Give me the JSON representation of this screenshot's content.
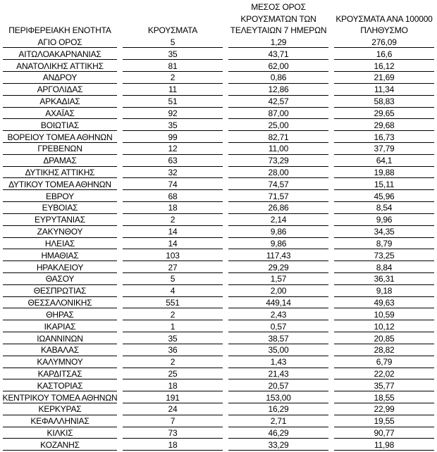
{
  "table": {
    "headers": [
      [
        "ΠΕΡΙΦΕΡΕΙΑΚΗ ΕΝΟΤΗΤΑ"
      ],
      [
        "ΚΡΟΥΣΜΑΤΑ"
      ],
      [
        "ΜΕΣΟΣ ΟΡΟΣ",
        "ΚΡΟΥΣΜΑΤΩΝ ΤΩΝ",
        "ΤΕΛΕΥΤΑΙΩΝ 7 ΗΜΕΡΩΝ"
      ],
      [
        "ΚΡΟΥΣΜΑΤΑ ΑΝΑ 100000",
        "ΠΛΗΘΥΣΜΟ"
      ]
    ],
    "rows": [
      [
        "ΑΓΙΟ ΟΡΟΣ",
        "5",
        "1,29",
        "276,09"
      ],
      [
        "ΑΙΤΩΛΟΑΚΑΡΝΑΝΙΑΣ",
        "35",
        "43,71",
        "16,6"
      ],
      [
        "ΑΝΑΤΟΛΙΚΗΣ ΑΤΤΙΚΗΣ",
        "81",
        "62,00",
        "16,12"
      ],
      [
        "ΑΝΔΡΟΥ",
        "2",
        "0,86",
        "21,69"
      ],
      [
        "ΑΡΓΟΛΙΔΑΣ",
        "11",
        "12,86",
        "11,34"
      ],
      [
        "ΑΡΚΑΔΙΑΣ",
        "51",
        "42,57",
        "58,83"
      ],
      [
        "ΑΧΑΪΑΣ",
        "92",
        "87,00",
        "29,65"
      ],
      [
        "ΒΟΙΩΤΙΑΣ",
        "35",
        "25,00",
        "29,68"
      ],
      [
        "ΒΟΡΕΙΟΥ ΤΟΜΕΑ ΑΘΗΝΩΝ",
        "99",
        "82,71",
        "16,73"
      ],
      [
        "ΓΡΕΒΕΝΩΝ",
        "12",
        "11,00",
        "37,79"
      ],
      [
        "ΔΡΑΜΑΣ",
        "63",
        "73,29",
        "64,1"
      ],
      [
        "ΔΥΤΙΚΗΣ ΑΤΤΙΚΗΣ",
        "32",
        "28,00",
        "19,88"
      ],
      [
        "ΔΥΤΙΚΟΥ ΤΟΜΕΑ ΑΘΗΝΩΝ",
        "74",
        "74,57",
        "15,11"
      ],
      [
        "ΕΒΡΟΥ",
        "68",
        "71,57",
        "45,96"
      ],
      [
        "ΕΥΒΟΙΑΣ",
        "18",
        "26,86",
        "8,54"
      ],
      [
        "ΕΥΡΥΤΑΝΙΑΣ",
        "2",
        "2,14",
        "9,96"
      ],
      [
        "ΖΑΚΥΝΘΟΥ",
        "14",
        "9,86",
        "34,35"
      ],
      [
        "ΗΛΕΙΑΣ",
        "14",
        "9,86",
        "8,79"
      ],
      [
        "ΗΜΑΘΙΑΣ",
        "103",
        "117,43",
        "73,25"
      ],
      [
        "ΗΡΑΚΛΕΙΟΥ",
        "27",
        "29,29",
        "8,84"
      ],
      [
        "ΘΑΣΟΥ",
        "5",
        "1,57",
        "36,31"
      ],
      [
        "ΘΕΣΠΡΩΤΙΑΣ",
        "4",
        "2,00",
        "9,18"
      ],
      [
        "ΘΕΣΣΑΛΟΝΙΚΗΣ",
        "551",
        "449,14",
        "49,63"
      ],
      [
        "ΘΗΡΑΣ",
        "2",
        "2,43",
        "10,59"
      ],
      [
        "ΙΚΑΡΙΑΣ",
        "1",
        "0,57",
        "10,12"
      ],
      [
        "ΙΩΑΝΝΙΝΩΝ",
        "35",
        "38,57",
        "20,85"
      ],
      [
        "ΚΑΒΑΛΑΣ",
        "36",
        "35,00",
        "28,82"
      ],
      [
        "ΚΑΛΥΜΝΟΥ",
        "2",
        "1,43",
        "6,79"
      ],
      [
        "ΚΑΡΔΙΤΣΑΣ",
        "25",
        "21,43",
        "22,02"
      ],
      [
        "ΚΑΣΤΟΡΙΑΣ",
        "18",
        "20,57",
        "35,77"
      ],
      [
        "ΚΕΝΤΡΙΚΟΥ ΤΟΜΕΑ ΑΘΗΝΩΝ",
        "191",
        "153,00",
        "18,55"
      ],
      [
        "ΚΕΡΚΥΡΑΣ",
        "24",
        "16,29",
        "22,99"
      ],
      [
        "ΚΕΦΑΛΛΗΝΙΑΣ",
        "7",
        "2,71",
        "19,55"
      ],
      [
        "ΚΙΛΚΙΣ",
        "73",
        "46,29",
        "90,77"
      ],
      [
        "ΚΟΖΑΝΗΣ",
        "18",
        "33,29",
        "11,98"
      ]
    ]
  }
}
